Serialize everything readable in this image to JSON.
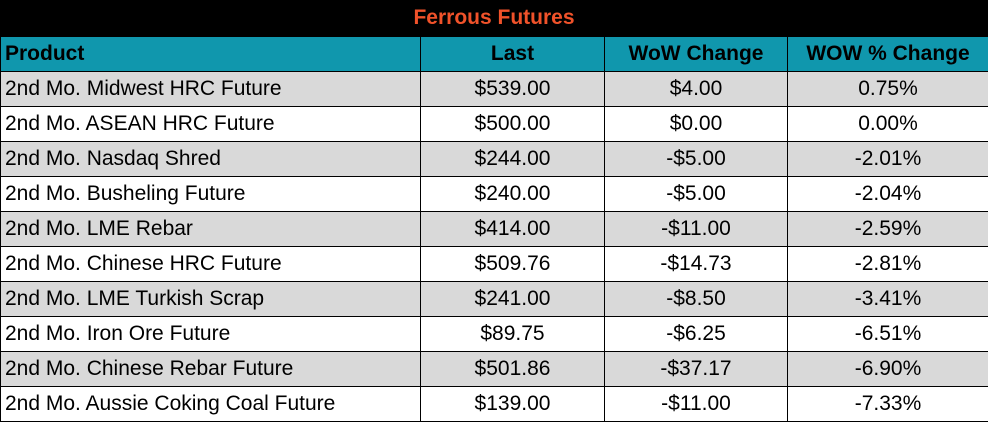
{
  "chart_data": {
    "type": "table",
    "title": "Ferrous Futures",
    "columns": [
      "Product",
      "Last",
      "WoW Change",
      "WOW % Change"
    ],
    "rows": [
      [
        "2nd Mo. Midwest HRC Future",
        "$539.00",
        "$4.00",
        "0.75%"
      ],
      [
        "2nd Mo. ASEAN HRC Future",
        "$500.00",
        "$0.00",
        "0.00%"
      ],
      [
        "2nd Mo. Nasdaq Shred",
        "$244.00",
        "-$5.00",
        "-2.01%"
      ],
      [
        "2nd Mo. Busheling Future",
        "$240.00",
        "-$5.00",
        "-2.04%"
      ],
      [
        "2nd Mo. LME Rebar",
        "$414.00",
        "-$11.00",
        "-2.59%"
      ],
      [
        "2nd Mo. Chinese HRC Future",
        "$509.76",
        "-$14.73",
        "-2.81%"
      ],
      [
        "2nd Mo. LME Turkish Scrap",
        "$241.00",
        "-$8.50",
        "-3.41%"
      ],
      [
        "2nd Mo. Iron Ore Future",
        "$89.75",
        "-$6.25",
        "-6.51%"
      ],
      [
        "2nd Mo. Chinese Rebar Future",
        "$501.86",
        "-$37.17",
        "-6.90%"
      ],
      [
        "2nd Mo. Aussie Coking Coal Future",
        "$139.00",
        "-$11.00",
        "-7.33%"
      ]
    ]
  },
  "colors": {
    "title_background": "#000000",
    "title_text": "#f0522a",
    "header_background": "#1097ad",
    "row_shade": "#d9d9d9",
    "row_plain": "#ffffff"
  }
}
